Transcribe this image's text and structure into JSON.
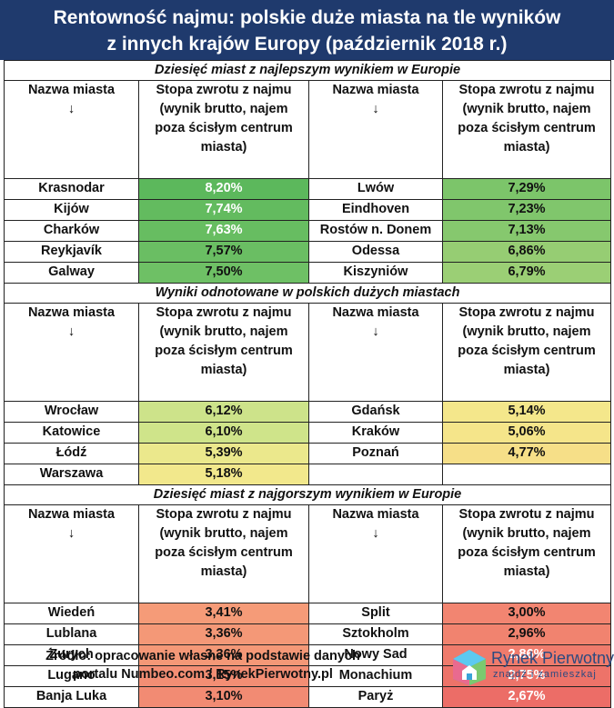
{
  "title": {
    "line1": "Rentowność najmu: polskie duże miasta na tle wyników",
    "line2": "z innych krajów Europy (październik 2018 r.)"
  },
  "headers": {
    "city": "Nazwa miasta",
    "arrow": "↓",
    "rate_l1": "Stopa zwrotu z najmu",
    "rate_l2": "(wynik brutto, najem",
    "rate_l3": "poza ścisłym centrum",
    "rate_l4": "miasta)"
  },
  "sections": [
    {
      "title": "Dziesięć miast z najlepszym wynikiem w Europie",
      "left": [
        {
          "city": "Krasnodar",
          "value": "8,20%",
          "color": "#5cb85c",
          "strong": true
        },
        {
          "city": "Kijów",
          "value": "7,74%",
          "color": "#63bb5f",
          "strong": true
        },
        {
          "city": "Charków",
          "value": "7,63%",
          "color": "#67bd61",
          "strong": true
        },
        {
          "city": "Reykjavík",
          "value": "7,57%",
          "color": "#6abe63",
          "strong": false
        },
        {
          "city": "Galway",
          "value": "7,50%",
          "color": "#6ec065",
          "strong": false
        }
      ],
      "right": [
        {
          "city": "Lwów",
          "value": "7,29%",
          "color": "#7cc56a",
          "strong": false
        },
        {
          "city": "Eindhoven",
          "value": "7,23%",
          "color": "#80c66c",
          "strong": false
        },
        {
          "city": "Rostów n. Donem",
          "value": "7,13%",
          "color": "#86c86e",
          "strong": false
        },
        {
          "city": "Odessa",
          "value": "6,86%",
          "color": "#96cd73",
          "strong": false
        },
        {
          "city": "Kiszyniów",
          "value": "6,79%",
          "color": "#9bcf75",
          "strong": false
        }
      ]
    },
    {
      "title": "Wyniki odnotowane w polskich dużych miastach",
      "left": [
        {
          "city": "Wrocław",
          "value": "6,12%",
          "color": "#cde38a",
          "strong": false
        },
        {
          "city": "Katowice",
          "value": "6,10%",
          "color": "#cfe48a",
          "strong": false
        },
        {
          "city": "Łódź",
          "value": "5,39%",
          "color": "#ebe88c",
          "strong": false
        },
        {
          "city": "Warszawa",
          "value": "5,18%",
          "color": "#f2e88c",
          "strong": false
        }
      ],
      "right": [
        {
          "city": "Gdańsk",
          "value": "5,14%",
          "color": "#f4e78b",
          "strong": false
        },
        {
          "city": "Kraków",
          "value": "5,06%",
          "color": "#f5e58a",
          "strong": false
        },
        {
          "city": "Poznań",
          "value": "4,77%",
          "color": "#f6df88",
          "strong": false
        }
      ]
    },
    {
      "title": "Dziesięć miast z najgorszym wynikiem w Europie",
      "left": [
        {
          "city": "Wiedeń",
          "value": "3,41%",
          "color": "#f59b78",
          "strong": false
        },
        {
          "city": "Lublana",
          "value": "3,36%",
          "color": "#f49877",
          "strong": false
        },
        {
          "city": "Zurych",
          "value": "3,36%",
          "color": "#f49877",
          "strong": false
        },
        {
          "city": "Lugano",
          "value": "3,15%",
          "color": "#f38e74",
          "strong": false
        },
        {
          "city": "Banja Luka",
          "value": "3,10%",
          "color": "#f28b73",
          "strong": false
        }
      ],
      "right": [
        {
          "city": "Split",
          "value": "3,00%",
          "color": "#f28571",
          "strong": false
        },
        {
          "city": "Sztokholm",
          "value": "2,96%",
          "color": "#f1836f",
          "strong": false
        },
        {
          "city": "Nowy Sad",
          "value": "2,86%",
          "color": "#ef7b6c",
          "strong": true
        },
        {
          "city": "Monachium",
          "value": "2,75%",
          "color": "#ed7369",
          "strong": true
        },
        {
          "city": "Paryż",
          "value": "2,67%",
          "color": "#ec6d67",
          "strong": true
        }
      ]
    }
  ],
  "footer": {
    "line1": "Źródło: opracowanie własne na podstawie danych",
    "line2": "portalu Numbeo.com / RynekPierwotny.pl"
  },
  "logo": {
    "name": "Rynek Pierwotny",
    "tagline": "znajdź i zamieszkaj"
  }
}
